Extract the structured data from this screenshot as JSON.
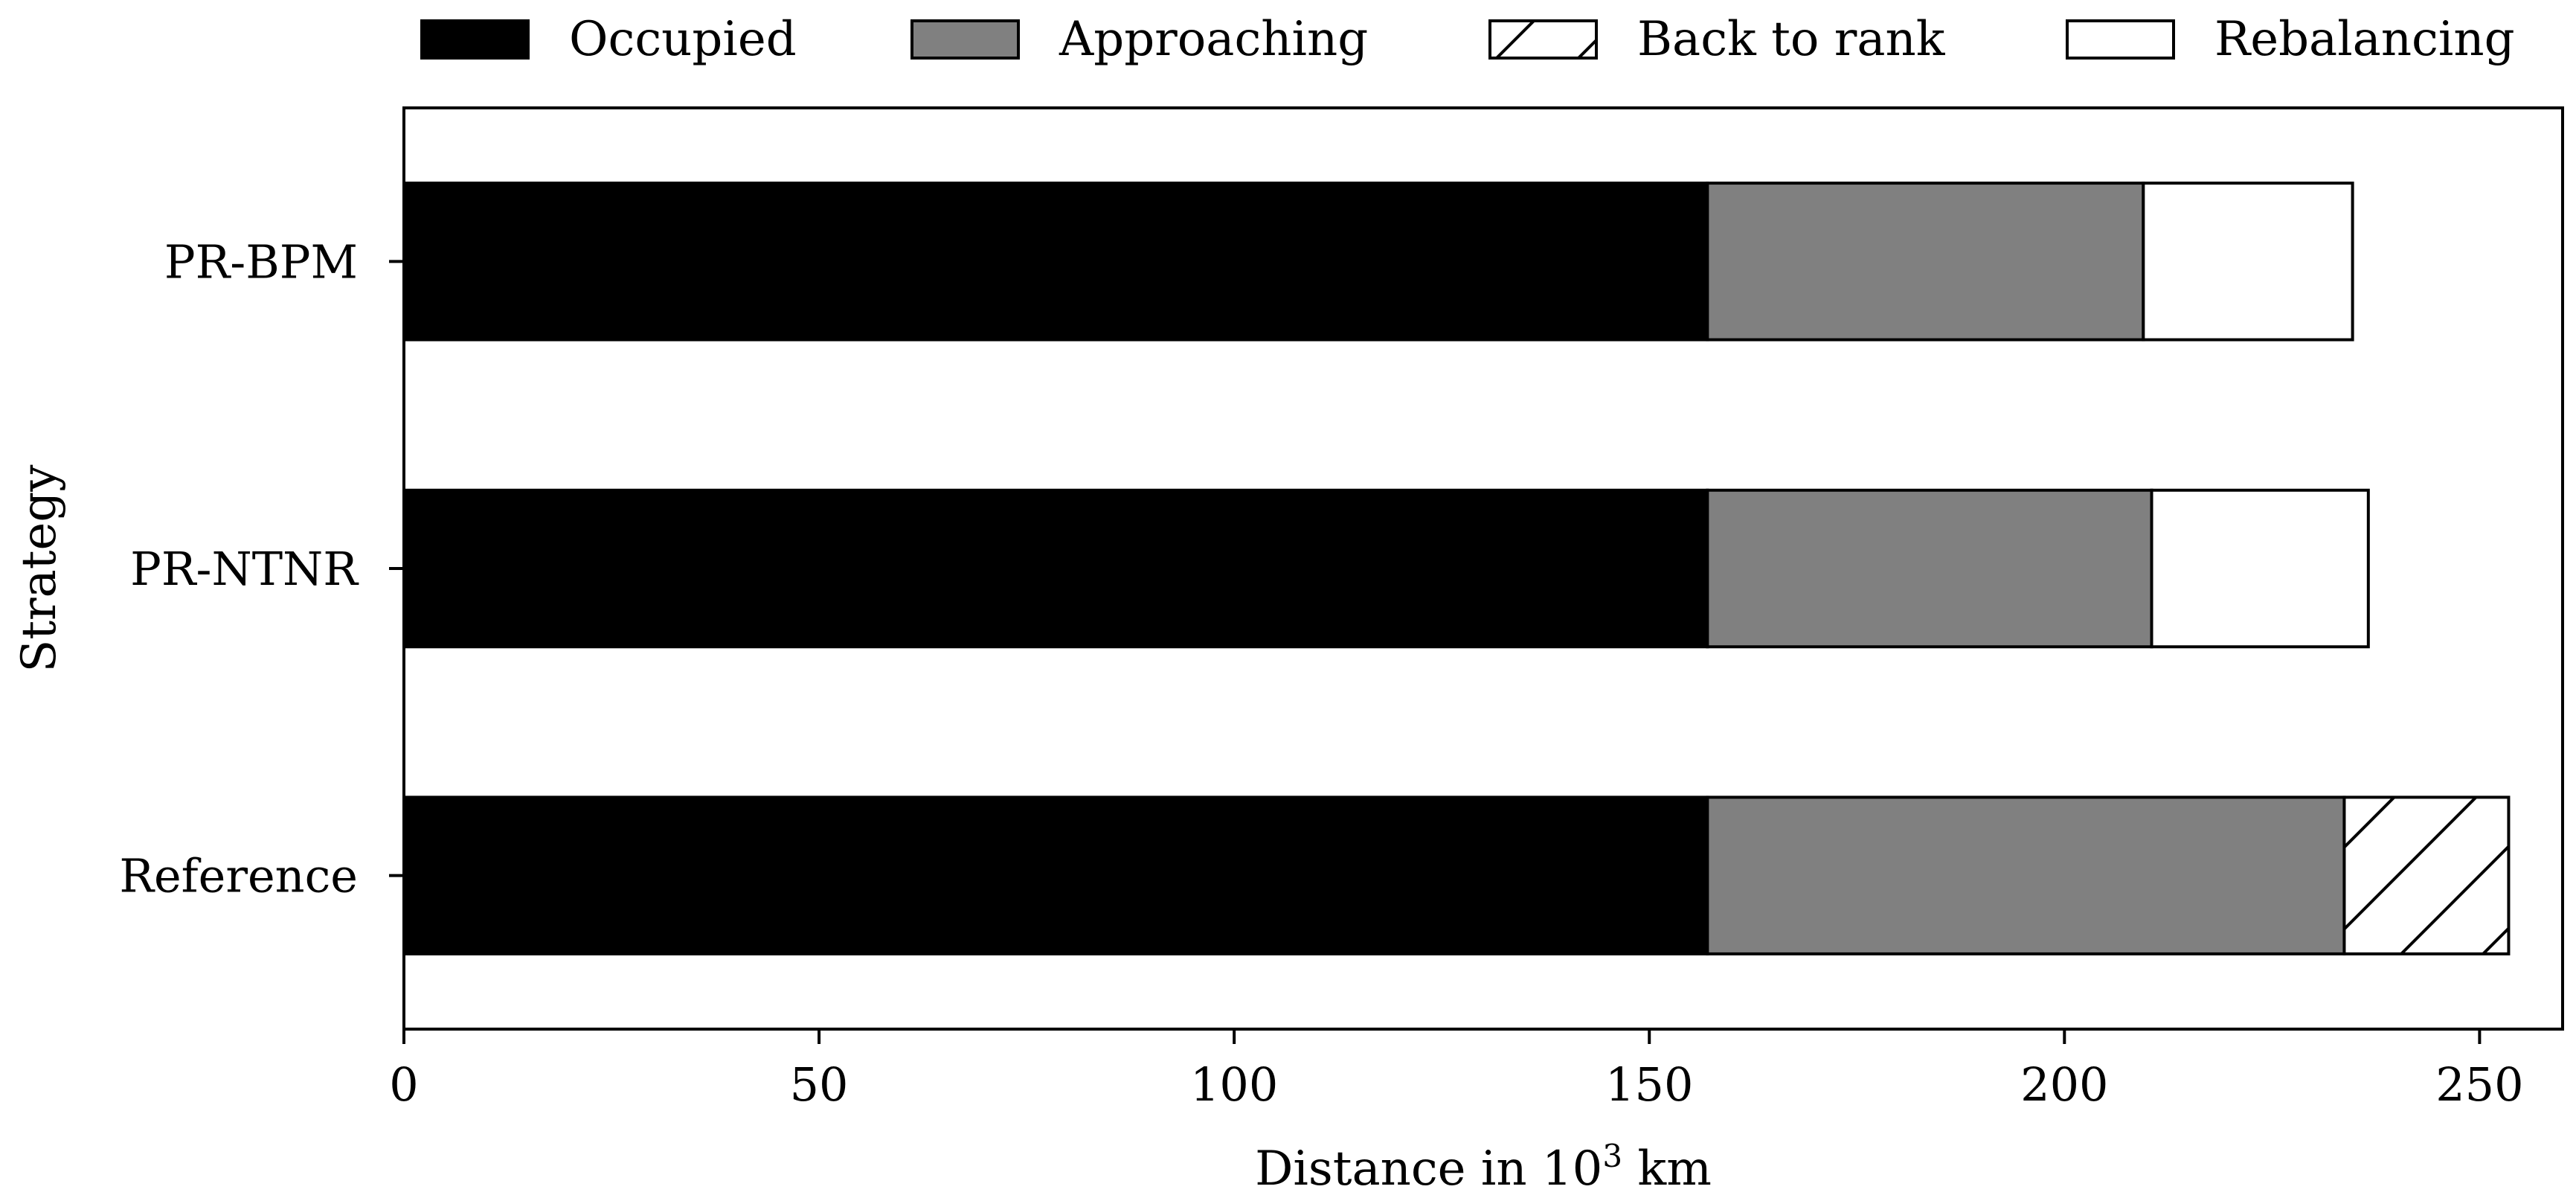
{
  "chart_data": {
    "type": "bar",
    "orientation": "horizontal",
    "stacked": true,
    "categories": [
      "PR-BPM",
      "PR-NTNR",
      "Reference"
    ],
    "series": [
      {
        "name": "Occupied",
        "values": [
          157,
          157,
          157
        ],
        "fill": "#000000",
        "pattern": "solid"
      },
      {
        "name": "Approaching",
        "values": [
          52.5,
          53.5,
          76.7
        ],
        "fill": "#808080",
        "pattern": "solid"
      },
      {
        "name": "Back to rank",
        "values": [
          0,
          0,
          19.8
        ],
        "fill": "#ffffff",
        "pattern": "hatch"
      },
      {
        "name": "Rebalancing",
        "values": [
          25.2,
          26.1,
          0
        ],
        "fill": "#ffffff",
        "pattern": "solid"
      }
    ],
    "xlabel_prefix": "Distance in 10",
    "xlabel_exponent": "3",
    "xlabel_suffix": " km",
    "ylabel": "Strategy",
    "xlim": [
      0,
      260
    ],
    "xticks": [
      0,
      50,
      100,
      150,
      200,
      250
    ],
    "grid": false,
    "legend_position": "top",
    "title": ""
  }
}
